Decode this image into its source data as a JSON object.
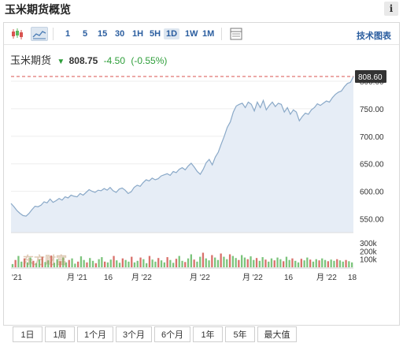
{
  "page": {
    "title": "玉米期货概览",
    "info_label": "i"
  },
  "toolbar": {
    "icons": [
      "candlestick-icon",
      "area-chart-icon",
      "table-view-icon"
    ],
    "ranges": [
      "1",
      "5",
      "15",
      "30",
      "1H",
      "5H",
      "1D",
      "1W",
      "1M"
    ],
    "active_range": "1D",
    "tech_chart_label": "技术图表"
  },
  "quote": {
    "name": "玉米期货",
    "price": "808.75",
    "change": "-4.50",
    "change_pct": "(-0.55%)",
    "direction_icon": "down-arrow-icon",
    "change_color": "#2e9e3a"
  },
  "chart_data": {
    "type": "area",
    "price_axis_ticks": [
      "550.00",
      "600.00",
      "650.00",
      "700.00",
      "750.00",
      "800.00"
    ],
    "ylim": [
      525,
      820
    ],
    "current_price_label": "808.60",
    "current_price": 808.6,
    "line_color": "#8aa9c8",
    "fill_color": "#e6edf6",
    "reference_line_color": "#d9534f",
    "x_tick_labels": [
      "'21",
      "月 '21",
      "16",
      "月 '22",
      "月 '22",
      "月 '22",
      "16",
      "月 '22",
      "18"
    ],
    "price_series": [
      578,
      572,
      565,
      560,
      556,
      555,
      560,
      567,
      573,
      572,
      575,
      581,
      579,
      586,
      580,
      583,
      587,
      584,
      590,
      588,
      593,
      591,
      590,
      596,
      593,
      598,
      603,
      600,
      598,
      602,
      601,
      605,
      602,
      607,
      601,
      598,
      604,
      606,
      602,
      596,
      599,
      607,
      611,
      609,
      616,
      621,
      619,
      624,
      621,
      623,
      628,
      630,
      632,
      629,
      636,
      634,
      640,
      643,
      639,
      646,
      651,
      644,
      636,
      631,
      640,
      652,
      658,
      648,
      662,
      671,
      686,
      700,
      716,
      726,
      744,
      755,
      758,
      760,
      752,
      762,
      758,
      746,
      762,
      752,
      765,
      748,
      756,
      762,
      754,
      760,
      758,
      744,
      752,
      740,
      748,
      744,
      728,
      736,
      742,
      740,
      748,
      752,
      759,
      756,
      760,
      764,
      762,
      770,
      776,
      780,
      782,
      790,
      796,
      798,
      808.6
    ],
    "volume_axis_ticks": [
      "300k",
      "200k",
      "100k"
    ],
    "volume_ylim": [
      0,
      330
    ],
    "volume_series": [
      40,
      90,
      140,
      70,
      110,
      60,
      120,
      80,
      50,
      95,
      130,
      65,
      85,
      145,
      55,
      100,
      75,
      120,
      60,
      90,
      110,
      45,
      70,
      135,
      90,
      60,
      115,
      80,
      50,
      100,
      125,
      70,
      60,
      95,
      140,
      85,
      55,
      110,
      90,
      70,
      130,
      60,
      80,
      120,
      100,
      50,
      140,
      95,
      70,
      115,
      85,
      60,
      125,
      90,
      55,
      105,
      140,
      80,
      65,
      110,
      160,
      95,
      70,
      130,
      180,
      110,
      85,
      150,
      120,
      90,
      170,
      130,
      100,
      160,
      140,
      115,
      90,
      150,
      120,
      100,
      135,
      90,
      115,
      80,
      125,
      95,
      70,
      110,
      85,
      120,
      100,
      75,
      130,
      90,
      110,
      80,
      60,
      105,
      85,
      120,
      95,
      70,
      100,
      85,
      110,
      90,
      75,
      95,
      80,
      100,
      85,
      70,
      90,
      75,
      60
    ],
    "volume_up_color": "#7cc47c",
    "volume_down_color": "#d9716b"
  },
  "watermark": "东方财富",
  "periods": [
    "1日",
    "1周",
    "1个月",
    "3个月",
    "6个月",
    "1年",
    "5年",
    "最大值"
  ]
}
